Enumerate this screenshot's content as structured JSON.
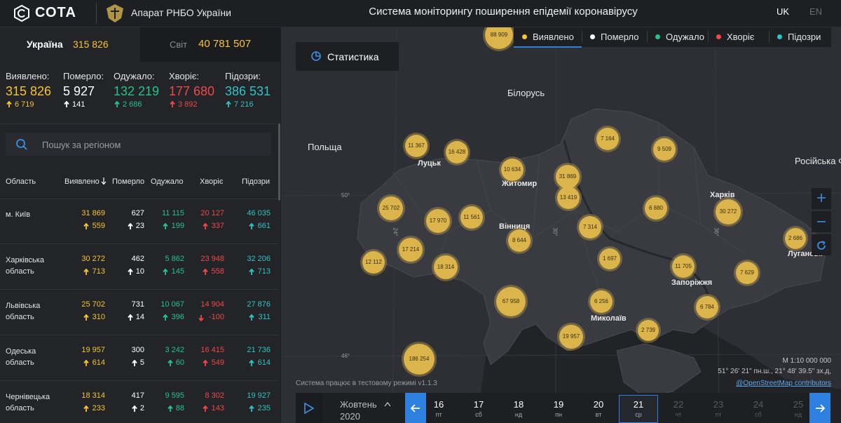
{
  "header": {
    "logo": "СОТА",
    "org": "Апарат РНБО України",
    "title": "Система моніторингу поширення епідемії коронавірусу",
    "languages": [
      "UK",
      "EN"
    ]
  },
  "tabs": [
    {
      "label": "Україна",
      "value": "315 826"
    },
    {
      "label": "Світ",
      "value": "40 781 507"
    }
  ],
  "summary": [
    {
      "label": "Виявлено:",
      "value": "315 826",
      "delta": "6 719",
      "color": "#f5c533"
    },
    {
      "label": "Померло:",
      "value": "5 927",
      "delta": "141",
      "color": "#ffffff"
    },
    {
      "label": "Одужало:",
      "value": "132 219",
      "delta": "2 686",
      "color": "#27c28a"
    },
    {
      "label": "Хворіє:",
      "value": "177 680",
      "delta": "3 892",
      "color": "#f04848"
    },
    {
      "label": "Підозри:",
      "value": "386 531",
      "delta": "7 216",
      "color": "#2ec4c4"
    }
  ],
  "search": {
    "placeholder": "Пошук за регіоном"
  },
  "table": {
    "columns": [
      "Область",
      "Виявлено",
      "Померло",
      "Одужало",
      "Хворіє",
      "Підозри"
    ],
    "rows": [
      {
        "region": "м. Київ",
        "cells": [
          {
            "value": "31 869",
            "delta": "559"
          },
          {
            "value": "627",
            "delta": "23"
          },
          {
            "value": "11 115",
            "delta": "199"
          },
          {
            "value": "20 127",
            "delta": "337"
          },
          {
            "value": "46 035",
            "delta": "661"
          }
        ]
      },
      {
        "region": "Харківська область",
        "cells": [
          {
            "value": "30 272",
            "delta": "713"
          },
          {
            "value": "462",
            "delta": "10"
          },
          {
            "value": "5 862",
            "delta": "145"
          },
          {
            "value": "23 948",
            "delta": "558"
          },
          {
            "value": "32 206",
            "delta": "713"
          }
        ]
      },
      {
        "region": "Львівська область",
        "cells": [
          {
            "value": "25 702",
            "delta": "310"
          },
          {
            "value": "731",
            "delta": "14"
          },
          {
            "value": "10 067",
            "delta": "396"
          },
          {
            "value": "14 904",
            "delta": "-100"
          },
          {
            "value": "27 876",
            "delta": "311"
          }
        ]
      },
      {
        "region": "Одеська область",
        "cells": [
          {
            "value": "19 957",
            "delta": "614"
          },
          {
            "value": "300",
            "delta": "5"
          },
          {
            "value": "3 242",
            "delta": "60"
          },
          {
            "value": "16 415",
            "delta": "549"
          },
          {
            "value": "21 736",
            "delta": "614"
          }
        ]
      },
      {
        "region": "Чернівецька область",
        "cells": [
          {
            "value": "18 314",
            "delta": "233"
          },
          {
            "value": "417",
            "delta": "2"
          },
          {
            "value": "9 595",
            "delta": "88"
          },
          {
            "value": "8 302",
            "delta": "143"
          },
          {
            "value": "19 927",
            "delta": "235"
          }
        ]
      }
    ]
  },
  "map": {
    "button": "Статистика",
    "legend": [
      {
        "label": "Виявлено",
        "color": "#f5c533"
      },
      {
        "label": "Померло",
        "color": "#ffffff"
      },
      {
        "label": "Одужало",
        "color": "#27c28a"
      },
      {
        "label": "Хворіє",
        "color": "#f04848"
      },
      {
        "label": "Підозри",
        "color": "#2ec4c4"
      }
    ],
    "clusters": [
      "88 909",
      "11 367",
      "16 428",
      "10 634",
      "31 869",
      "13 419",
      "7 164",
      "9 509",
      "25 702",
      "17 970",
      "11 561",
      "6 880",
      "30 272",
      "2 686",
      "7 314",
      "8 644",
      "17 214",
      "12 112",
      "18 314",
      "1 697",
      "11 705",
      "7 629",
      "67 958",
      "6 256",
      "6 784",
      "2 739",
      "19 957",
      "186 254"
    ],
    "places": [
      "Білорусь",
      "Польща",
      "Луцьк",
      "Житомир",
      "Вінниця",
      "Харків",
      "Запоріжжя",
      "Миколаїв",
      "Луганськ",
      "Російська Ф"
    ],
    "graticule": [
      "50°",
      "24°",
      "30°",
      "36°",
      "46°"
    ],
    "scale": "М 1:10 000 000",
    "coordinates": "51° 26' 21\" пн.ш., 21° 48' 39.5\" зх.д,",
    "attribution": "@OpenStreetMap contributors",
    "notice": "Система працює в тестовому режимі v1.1.3"
  },
  "timeline": {
    "month": "Жовтень",
    "year": "2020",
    "selected": 5,
    "days": [
      {
        "day": "16",
        "weekday": "пт"
      },
      {
        "day": "17",
        "weekday": "сб"
      },
      {
        "day": "18",
        "weekday": "нд"
      },
      {
        "day": "19",
        "weekday": "пн"
      },
      {
        "day": "20",
        "weekday": "вт"
      },
      {
        "day": "21",
        "weekday": "ср"
      },
      {
        "day": "22",
        "weekday": "чт"
      },
      {
        "day": "23",
        "weekday": "пт"
      },
      {
        "day": "24",
        "weekday": "сб"
      },
      {
        "day": "25",
        "weekday": "нд"
      }
    ]
  }
}
